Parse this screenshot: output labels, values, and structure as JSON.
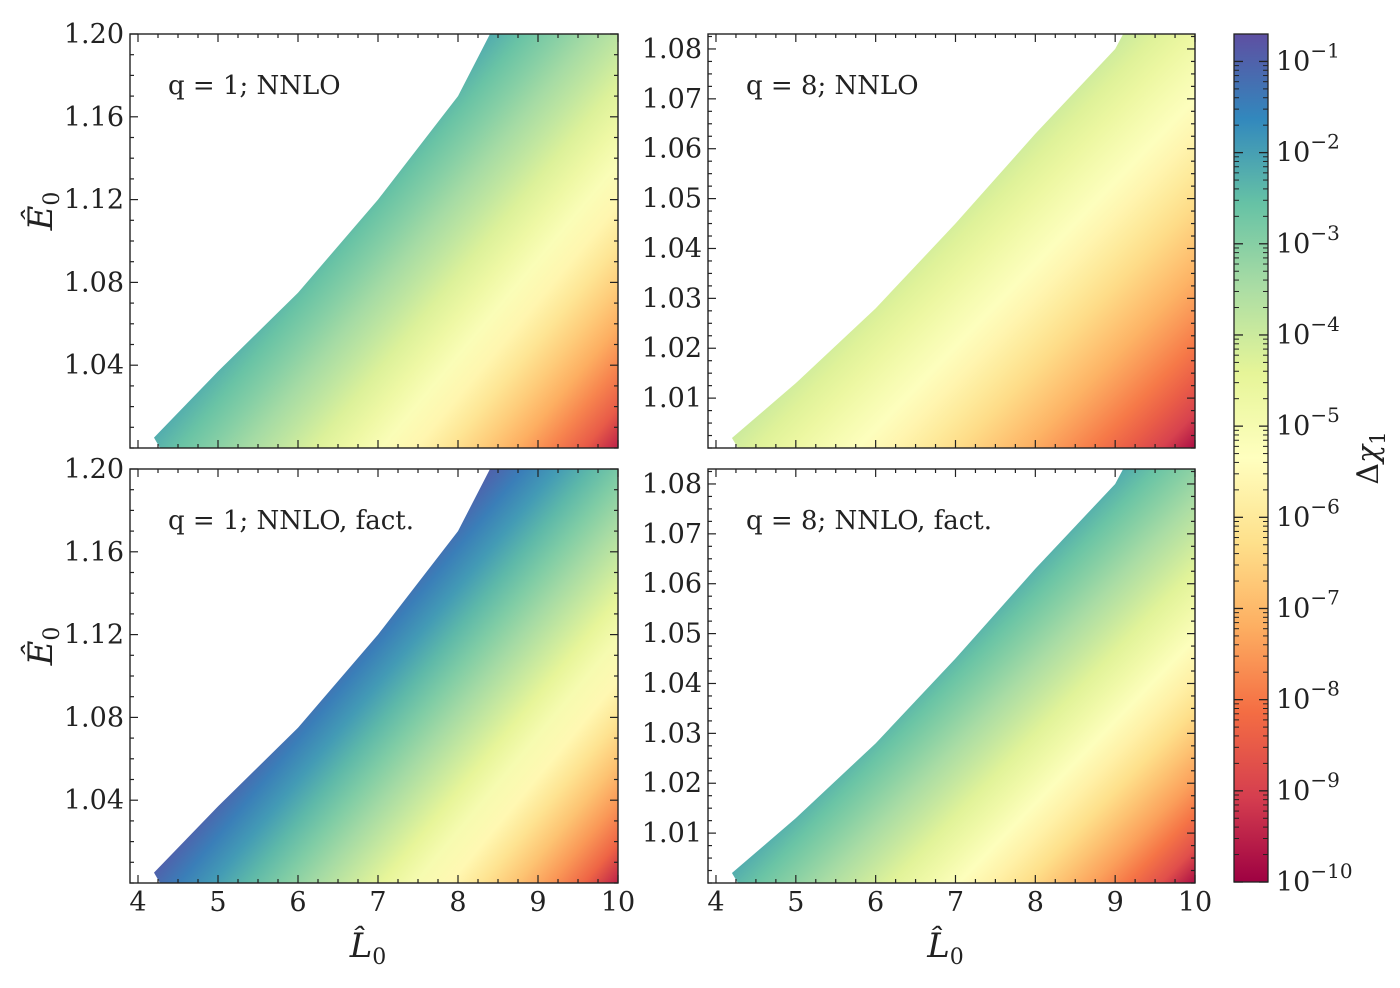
{
  "chart_data": {
    "type": "heatmap",
    "colormap": "Spectral",
    "colorbar": {
      "label": "Δχ1",
      "scale": "log",
      "range": [
        1e-10,
        0.2
      ],
      "tick_labels": [
        "10−1",
        "10−2",
        "10−3",
        "10−4",
        "10−5",
        "10−6",
        "10−7",
        "10−8",
        "10−9",
        "10−10"
      ],
      "tick_values": [
        0.1,
        0.01,
        0.001,
        0.0001,
        1e-05,
        1e-06,
        1e-07,
        1e-08,
        1e-09,
        1e-10
      ]
    },
    "xlabel": "L̂0",
    "panels": [
      {
        "annotation": "q = 1; NNLO",
        "xlim": [
          3.9,
          10
        ],
        "ylim": [
          1.0,
          1.2
        ],
        "xticks": [
          4,
          5,
          6,
          7,
          8,
          9,
          10
        ],
        "yticks": [
          1.04,
          1.08,
          1.12,
          1.16,
          1.2
        ],
        "ytick_labels": [
          "1.04",
          "1.08",
          "1.12",
          "1.16",
          "1.20"
        ],
        "ylabel": "Ê0",
        "boundary": [
          [
            4.2,
            1.005
          ],
          [
            5,
            1.037
          ],
          [
            6,
            1.075
          ],
          [
            7,
            1.12
          ],
          [
            8,
            1.17
          ],
          [
            8.4,
            1.2
          ]
        ],
        "delta_at_edge_log": -2.2,
        "delta_min_log": -9.5
      },
      {
        "annotation": "q = 8; NNLO",
        "xlim": [
          3.9,
          10
        ],
        "ylim": [
          1.0,
          1.083
        ],
        "xticks": [
          4,
          5,
          6,
          7,
          8,
          9,
          10
        ],
        "yticks": [
          1.01,
          1.02,
          1.03,
          1.04,
          1.05,
          1.06,
          1.07,
          1.08
        ],
        "ytick_labels": [
          "1.01",
          "1.02",
          "1.03",
          "1.04",
          "1.05",
          "1.06",
          "1.07",
          "1.08"
        ],
        "ylabel": "",
        "boundary": [
          [
            4.2,
            1.002
          ],
          [
            5,
            1.013
          ],
          [
            6,
            1.028
          ],
          [
            7,
            1.045
          ],
          [
            8,
            1.063
          ],
          [
            9,
            1.08
          ],
          [
            9.1,
            1.083
          ]
        ],
        "delta_at_edge_log": -4.0,
        "delta_min_log": -9.8
      },
      {
        "annotation": "q = 1; NNLO,  fact.",
        "xlim": [
          3.9,
          10
        ],
        "ylim": [
          1.0,
          1.2
        ],
        "xticks": [
          4,
          5,
          6,
          7,
          8,
          9,
          10
        ],
        "yticks": [
          1.04,
          1.08,
          1.12,
          1.16,
          1.2
        ],
        "ytick_labels": [
          "1.04",
          "1.08",
          "1.12",
          "1.16",
          "1.20"
        ],
        "ylabel": "Ê0",
        "boundary": [
          [
            4.2,
            1.005
          ],
          [
            5,
            1.037
          ],
          [
            6,
            1.075
          ],
          [
            7,
            1.12
          ],
          [
            8,
            1.17
          ],
          [
            8.4,
            1.2
          ]
        ],
        "delta_at_edge_log": -1.0,
        "delta_min_log": -9.5
      },
      {
        "annotation": "q = 8; NNLO,  fact.",
        "xlim": [
          3.9,
          10
        ],
        "ylim": [
          1.0,
          1.083
        ],
        "xticks": [
          4,
          5,
          6,
          7,
          8,
          9,
          10
        ],
        "yticks": [
          1.01,
          1.02,
          1.03,
          1.04,
          1.05,
          1.06,
          1.07,
          1.08
        ],
        "ytick_labels": [
          "1.01",
          "1.02",
          "1.03",
          "1.04",
          "1.05",
          "1.06",
          "1.07",
          "1.08"
        ],
        "ylabel": "",
        "boundary": [
          [
            4.2,
            1.002
          ],
          [
            5,
            1.013
          ],
          [
            6,
            1.028
          ],
          [
            7,
            1.045
          ],
          [
            8,
            1.063
          ],
          [
            9,
            1.08
          ],
          [
            9.1,
            1.083
          ]
        ],
        "delta_at_edge_log": -2.2,
        "delta_min_log": -9.8
      }
    ]
  }
}
